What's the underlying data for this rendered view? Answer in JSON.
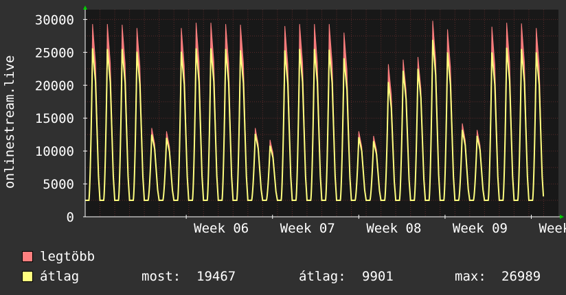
{
  "chart_data": {
    "type": "line",
    "ylabel": "onlinestream.live",
    "ylim": [
      0,
      31500
    ],
    "yticks": [
      0,
      5000,
      10000,
      15000,
      20000,
      25000,
      30000
    ],
    "xticks": [
      {
        "label": "Week 06",
        "x": 41
      },
      {
        "label": "Week 07",
        "x": 76
      },
      {
        "label": "Week 08",
        "x": 111
      },
      {
        "label": "Week 09",
        "x": 146
      },
      {
        "label": "Week",
        "x": 181
      }
    ],
    "x_unit": "hours",
    "xlim": [
      0,
      1536
    ],
    "daily_peaks": {
      "legtobb": [
        29300,
        29300,
        29200,
        28700,
        13500,
        13000,
        28700,
        29500,
        29500,
        29300,
        29200,
        13500,
        11700,
        29000,
        29300,
        29300,
        29300,
        28000,
        13000,
        12300,
        23200,
        23900,
        24300,
        29800,
        28500,
        14200,
        13200,
        28900,
        29500,
        29400,
        28700
      ],
      "atlag": [
        25600,
        25500,
        25500,
        25100,
        12500,
        12000,
        25100,
        25600,
        25600,
        25500,
        25300,
        12600,
        10800,
        25300,
        25500,
        25500,
        25400,
        24100,
        12100,
        11500,
        20500,
        22200,
        22500,
        26900,
        25000,
        13200,
        12300,
        25000,
        25700,
        25500,
        25000
      ]
    },
    "daily_trough": 2500,
    "series": [
      {
        "name": "legtöbb",
        "color": "#ff7f7f"
      },
      {
        "name": "átlag",
        "color": "#ffff7f"
      }
    ],
    "grid": true
  },
  "legend": {
    "max_label": "legtöbb",
    "avg_label": "átlag",
    "now_label": "most:",
    "now_value": "19467",
    "avg_stat_label": "átlag:",
    "avg_stat_value": "9901",
    "max_stat_label": "max:",
    "max_stat_value": "26989"
  },
  "colors": {
    "background": "#303030",
    "plot_background": "#181818",
    "grid": "#5a2a2a",
    "text": "#ffffff",
    "arrow": "#00cc00"
  }
}
